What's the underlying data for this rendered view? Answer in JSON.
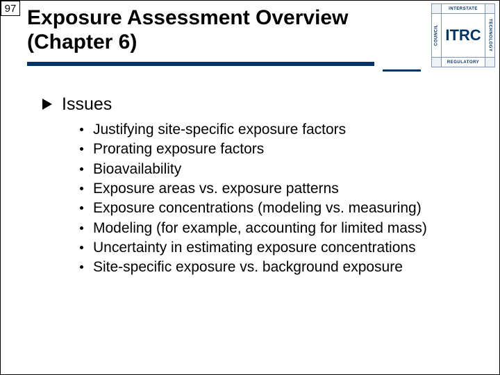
{
  "page_number": "97",
  "title_line1": "Exposure Assessment Overview",
  "title_line2": "(Chapter 6)",
  "logo": {
    "center": "ITRC",
    "top": "INTERSTATE",
    "right": "TECHNOLOGY",
    "bottom": "REGULATORY",
    "left": "COUNCIL"
  },
  "heading": "Issues",
  "bullets": [
    "Justifying site-specific exposure factors",
    "Prorating exposure factors",
    "Bioavailability",
    "Exposure areas vs. exposure patterns",
    "Exposure concentrations (modeling vs. measuring)",
    "Modeling (for example, accounting for limited mass)",
    "Uncertainty in estimating exposure concentrations",
    "Site-specific exposure vs. background exposure"
  ],
  "colors": {
    "accent": "#003366",
    "text": "#000000",
    "background": "#ffffff"
  }
}
